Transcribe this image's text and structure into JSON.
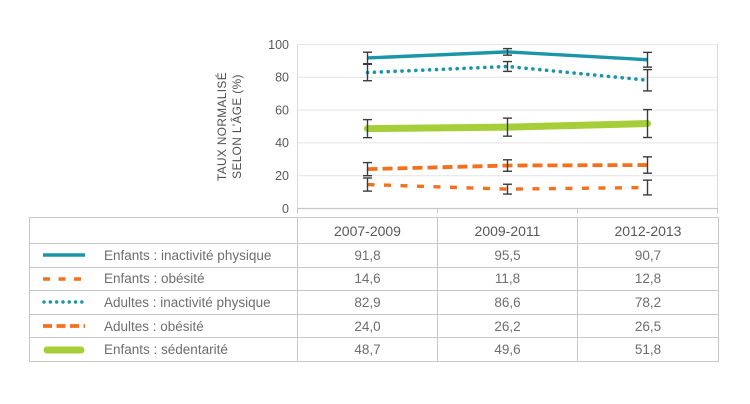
{
  "colors": {
    "teal": "#1b95a8",
    "orange": "#f3701f",
    "green": "#a6ce39",
    "error_bar": "#3b3b3b",
    "grid": "#e4e4e4",
    "axis": "#c7c8ca",
    "text": "#58595b",
    "value_text": "#6d6e70"
  },
  "chart_data": {
    "type": "line",
    "title": "",
    "ylabel_lines": [
      "TAUX NORMALISÉ",
      "SELON L'ÂGE (%)"
    ],
    "categories": [
      "2007-2009",
      "2009-2011",
      "2012-2013"
    ],
    "yticks": [
      0,
      20,
      40,
      60,
      80,
      100
    ],
    "ylim": [
      0,
      100
    ],
    "grid": "horizontal",
    "error_bars": true,
    "legend_position": "table-below",
    "series": [
      {
        "name": "Enfants : inactivité physique",
        "color": "teal",
        "style": "solid",
        "values": [
          91.8,
          95.5,
          90.7
        ],
        "errors": [
          3.5,
          2.0,
          4.5
        ]
      },
      {
        "name": "Enfants : obésité",
        "color": "orange",
        "style": "short-dash",
        "values": [
          14.6,
          11.8,
          12.8
        ],
        "errors": [
          4.0,
          3.0,
          4.5
        ]
      },
      {
        "name": "Adultes : inactivité physique",
        "color": "teal",
        "style": "dotted",
        "values": [
          82.9,
          86.6,
          78.2
        ],
        "errors": [
          5.0,
          3.0,
          6.5
        ]
      },
      {
        "name": "Adultes : obésité",
        "color": "orange",
        "style": "long-dash",
        "values": [
          24.0,
          26.2,
          26.5
        ],
        "errors": [
          4.0,
          3.5,
          5.0
        ]
      },
      {
        "name": "Enfants : sédentarité",
        "color": "green",
        "style": "thick-solid",
        "values": [
          48.7,
          49.6,
          51.8
        ],
        "errors": [
          5.5,
          5.5,
          8.5
        ]
      }
    ]
  },
  "table": {
    "columns": [
      "2007-2009",
      "2009-2011",
      "2012-2013"
    ],
    "rows": [
      {
        "label": "Enfants : inactivité physique",
        "values": [
          "91,8",
          "95,5",
          "90,7"
        ]
      },
      {
        "label": "Enfants : obésité",
        "values": [
          "14,6",
          "11,8",
          "12,8"
        ]
      },
      {
        "label": "Adultes : inactivité physique",
        "values": [
          "82,9",
          "86,6",
          "78,2"
        ]
      },
      {
        "label": "Adultes : obésité",
        "values": [
          "24,0",
          "26,2",
          "26,5"
        ]
      },
      {
        "label": "Enfants : sédentarité",
        "values": [
          "48,7",
          "49,6",
          "51,8"
        ]
      }
    ]
  }
}
